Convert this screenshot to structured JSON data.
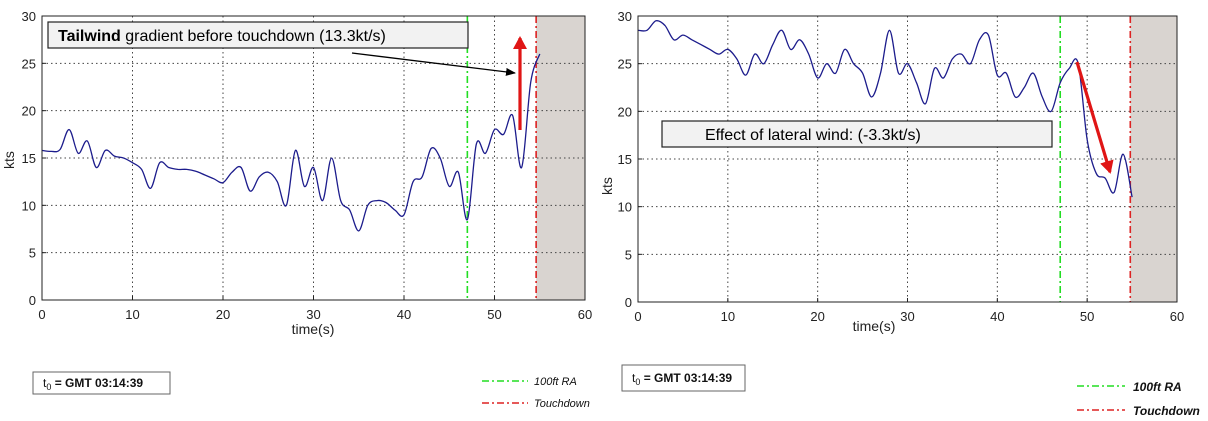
{
  "chart_data": [
    {
      "type": "line",
      "xlabel": "time(s)",
      "ylabel": "kts",
      "xlim": [
        0,
        60
      ],
      "ylim": [
        0,
        30
      ],
      "x_ticks": [
        0,
        10,
        20,
        30,
        40,
        50,
        60
      ],
      "y_ticks": [
        0,
        5,
        10,
        15,
        20,
        25,
        30
      ],
      "grid": true,
      "series": [
        {
          "x": [
            0,
            1,
            2,
            3,
            4,
            5,
            6,
            7,
            8,
            9,
            10,
            11,
            12,
            13,
            14,
            15,
            16,
            17,
            18,
            19,
            20,
            21,
            22,
            23,
            24,
            25,
            26,
            27,
            28,
            29,
            30,
            31,
            32,
            33,
            34,
            35,
            36,
            37,
            38,
            39,
            40,
            41,
            42,
            43,
            44,
            45,
            46,
            47,
            48,
            49,
            50,
            51,
            52,
            53,
            54,
            55
          ],
          "values": [
            15.8,
            15.7,
            15.9,
            18,
            15.5,
            16.8,
            14,
            15.8,
            15.2,
            15,
            14.5,
            13.8,
            11.8,
            14.5,
            14,
            13.8,
            13.8,
            13.6,
            13.2,
            12.8,
            12.4,
            13.5,
            14,
            11.5,
            13,
            13.5,
            12.5,
            10,
            15.8,
            12,
            14,
            10.5,
            15,
            10.5,
            9.5,
            7.3,
            10,
            10.5,
            10.3,
            9.5,
            9,
            12.5,
            13,
            16,
            15,
            12,
            13.5,
            8.5,
            16.5,
            15.5,
            18,
            17.5,
            19.5,
            14,
            23,
            26
          ]
        }
      ],
      "vlines": [
        {
          "x": 47,
          "label": "100ft RA",
          "color": "#22dd22"
        },
        {
          "x": 54.6,
          "label": "Touchdown",
          "color": "#dd2222"
        }
      ],
      "shaded_region": {
        "x0": 54.6,
        "x1": 60,
        "color": "#d9d4d0"
      },
      "annotation": {
        "bold": "Tailwind",
        "rest": " gradient before touchdown (13.3kt/s)"
      },
      "time_ref": {
        "prefix": "t",
        "sub": "0",
        "suffix": " = GMT 03:14:39"
      },
      "legend": [
        "100ft RA",
        "Touchdown"
      ]
    },
    {
      "type": "line",
      "xlabel": "time(s)",
      "ylabel": "kts",
      "xlim": [
        0,
        60
      ],
      "ylim": [
        0,
        30
      ],
      "x_ticks": [
        0,
        10,
        20,
        30,
        40,
        50,
        60
      ],
      "y_ticks": [
        0,
        5,
        10,
        15,
        20,
        25,
        30
      ],
      "grid": true,
      "series": [
        {
          "x": [
            0,
            1,
            2,
            3,
            4,
            5,
            6,
            7,
            8,
            9,
            10,
            11,
            12,
            13,
            14,
            15,
            16,
            17,
            18,
            19,
            20,
            21,
            22,
            23,
            24,
            25,
            26,
            27,
            28,
            29,
            30,
            31,
            32,
            33,
            34,
            35,
            36,
            37,
            38,
            39,
            40,
            41,
            42,
            43,
            44,
            45,
            46,
            47,
            48,
            49,
            50,
            51,
            52,
            53,
            54,
            55
          ],
          "values": [
            28.5,
            28.5,
            29.5,
            29,
            27.5,
            28,
            27.5,
            27,
            26.5,
            26,
            26.5,
            25.5,
            23.8,
            26,
            25,
            27,
            28.5,
            26.5,
            27.5,
            26,
            23.5,
            25,
            24,
            26.5,
            25,
            24,
            21.5,
            24,
            28.5,
            24,
            25,
            23,
            20.8,
            24.5,
            23.5,
            25.5,
            26,
            25,
            27.5,
            28,
            23.8,
            24,
            21.5,
            22.5,
            24,
            21.5,
            20,
            23,
            24.5,
            25,
            17,
            13.5,
            13,
            11.5,
            15.5,
            11
          ]
        }
      ],
      "vlines": [
        {
          "x": 47,
          "label": "100ft RA",
          "color": "#22dd22"
        },
        {
          "x": 54.8,
          "label": "Touchdown",
          "color": "#dd2222"
        }
      ],
      "shaded_region": {
        "x0": 54.8,
        "x1": 60,
        "color": "#d9d4d0"
      },
      "annotation": {
        "bold": "",
        "rest": "Effect of lateral wind: (-3.3kt/s)"
      },
      "time_ref": {
        "prefix": "t",
        "sub": "0",
        "suffix": " = GMT 03:14:39"
      },
      "legend": [
        "100ft RA",
        "Touchdown"
      ]
    }
  ]
}
